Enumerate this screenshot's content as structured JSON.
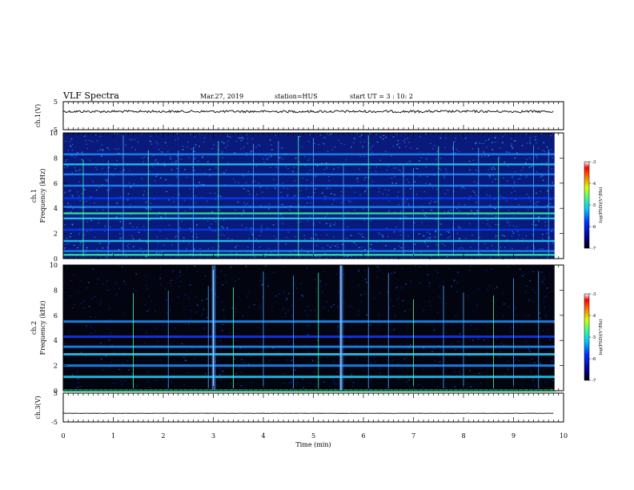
{
  "header": {
    "title": "VLF Spectra",
    "date": "Mar.27, 2019",
    "station": "station=HUS",
    "start": "start  UT =   3  : 10: 2"
  },
  "chart_data": [
    {
      "type": "line",
      "panel": "ch1-waveform",
      "ylabel": "ch.1(V)",
      "yticks": [
        "5",
        "-5"
      ],
      "ylim": [
        -5,
        5
      ],
      "x_minutes": [
        0,
        9.8
      ],
      "trace_level_v": 1.5
    },
    {
      "type": "heatmap",
      "panel": "ch1-spectrogram",
      "ylabel": [
        "ch.1",
        "Frequency (kHz)"
      ],
      "yticks": [
        "0",
        "2",
        "4",
        "6",
        "8",
        "10"
      ],
      "ylim": [
        0,
        10
      ],
      "colorbar": {
        "label": "log(PSD)(V²/Hz)",
        "ticks": [
          "-3",
          "-4",
          "-5",
          "-6",
          "-7"
        ],
        "range": [
          -7,
          -3
        ]
      },
      "bands_khz": [
        0.3,
        0.6,
        1.4,
        2.3,
        3.2,
        3.6,
        4.1,
        4.8,
        5.8,
        6.7,
        7.5,
        8.3
      ],
      "spikes_min": [
        0.4,
        0.9,
        1.2,
        1.7,
        2.3,
        2.6,
        3.1,
        3.8,
        4.3,
        4.7,
        5.0,
        5.6,
        6.1,
        6.8,
        7.0,
        7.5,
        7.8,
        8.3,
        8.7,
        9.4,
        9.7
      ]
    },
    {
      "type": "heatmap",
      "panel": "ch2-spectrogram",
      "ylabel": [
        "ch.2",
        "Frequency (kHz)"
      ],
      "yticks": [
        "0",
        "2",
        "4",
        "6",
        "8",
        "10"
      ],
      "ylim": [
        0,
        10
      ],
      "colorbar": {
        "label": "log(PSD)(V²/Hz)",
        "ticks": [
          "-3",
          "-4",
          "-5",
          "-6",
          "-7"
        ],
        "range": [
          -7,
          -3
        ]
      },
      "bands_khz": [
        0.0,
        1.1,
        2.0,
        2.9,
        3.5,
        4.3,
        5.5
      ],
      "bursts_min": [
        3.0,
        5.55
      ],
      "spikes_min": [
        1.4,
        2.1,
        2.9,
        3.4,
        4.0,
        4.6,
        5.1,
        6.1,
        6.5,
        7.0,
        7.6,
        8.0,
        8.6,
        9.0,
        9.5
      ]
    },
    {
      "type": "line",
      "panel": "ch3-waveform",
      "ylabel": "ch.3(V)",
      "yticks": [
        "5",
        "-5"
      ],
      "ylim": [
        -5,
        5
      ],
      "x_minutes": [
        0,
        9.8
      ],
      "trace_level_v": -2.0
    }
  ],
  "xaxis": {
    "label": "Time  (min)",
    "ticks": [
      "0",
      "1",
      "2",
      "3",
      "4",
      "5",
      "6",
      "7",
      "8",
      "9",
      "10"
    ],
    "range": [
      0,
      10
    ]
  }
}
